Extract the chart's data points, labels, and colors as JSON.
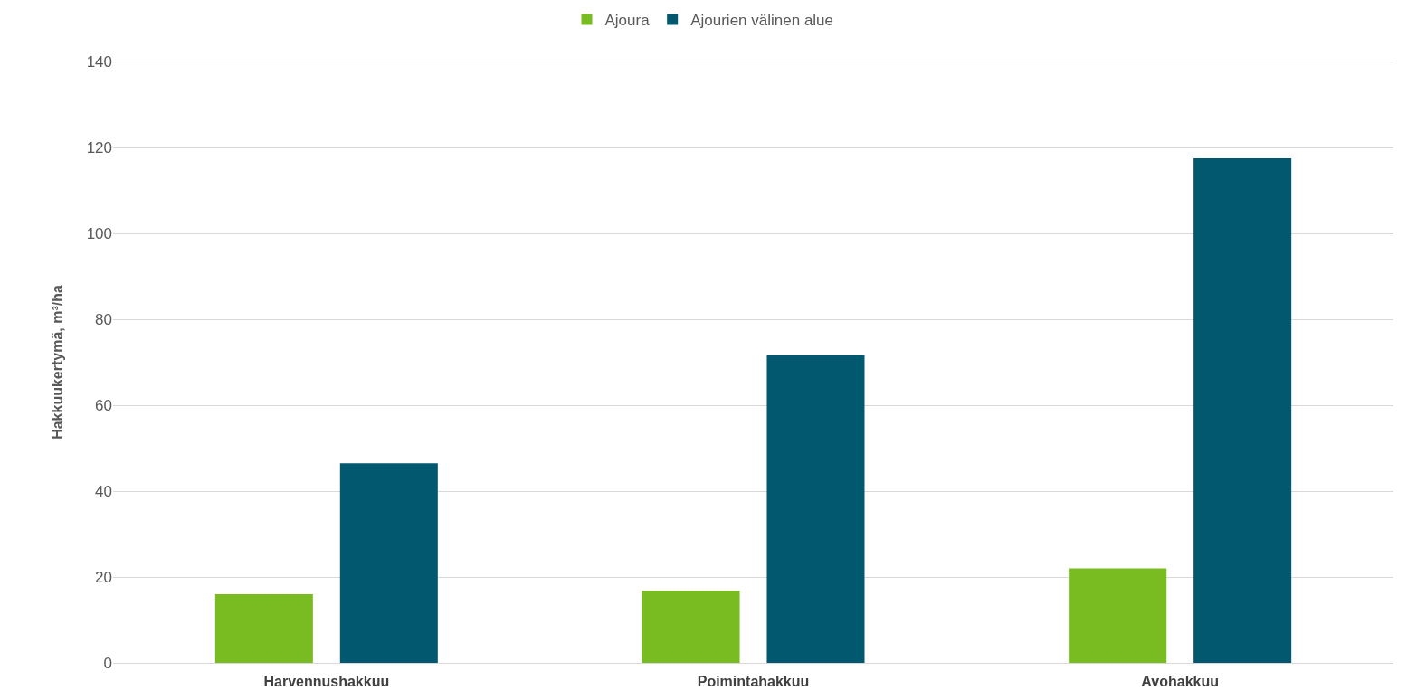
{
  "chart_data": {
    "type": "bar",
    "ylabel": "Hakkuukertymä, m³/ha",
    "categories": [
      "Harvennushakkuu",
      "Poimintahakkuu",
      "Avohakkuu"
    ],
    "series": [
      {
        "name": "Ajoura",
        "color": "#78bc22",
        "values": [
          16,
          16.8,
          22
        ]
      },
      {
        "name": "Ajourien välinen alue",
        "color": "#02596f",
        "values": [
          46.5,
          71.7,
          117.5
        ]
      }
    ],
    "ylim": [
      0,
      140
    ],
    "yticks": [
      0,
      20,
      40,
      60,
      80,
      100,
      120,
      140
    ],
    "grid": "y",
    "legend": "top"
  }
}
